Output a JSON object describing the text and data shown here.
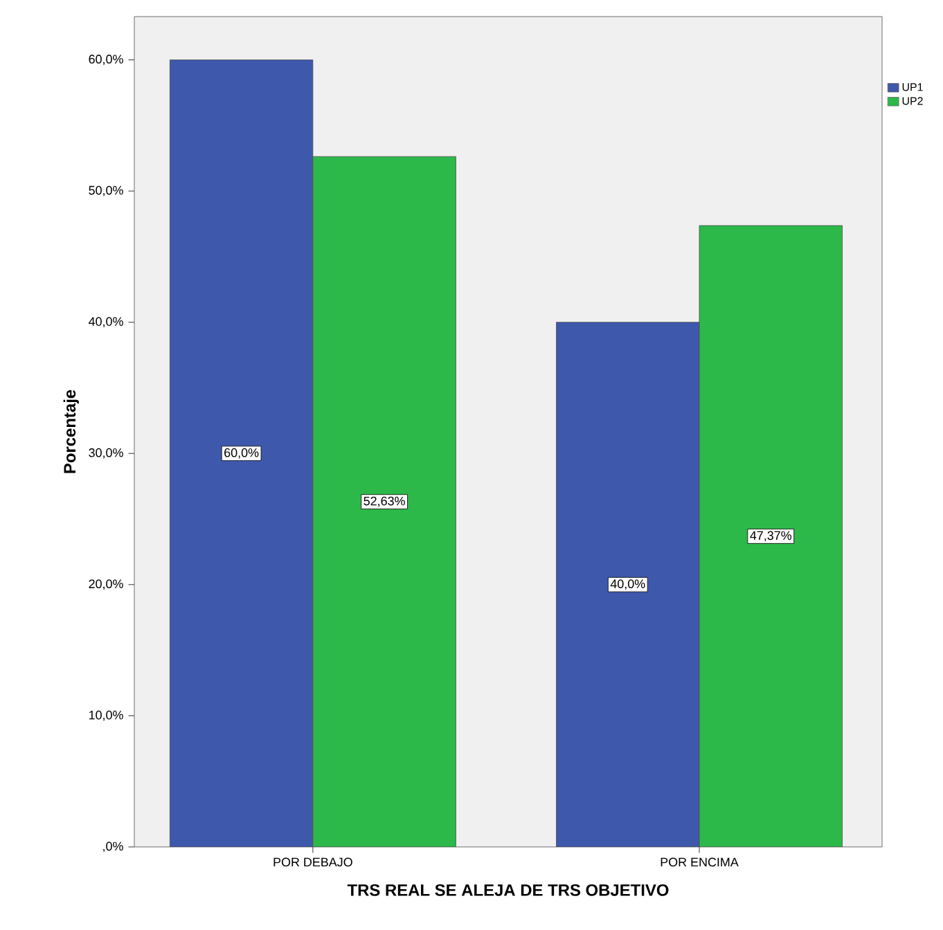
{
  "chart_data": {
    "type": "bar",
    "xlabel": "TRS REAL SE ALEJA DE TRS OBJETIVO",
    "ylabel": "Porcentaje",
    "categories": [
      "POR DEBAJO",
      "POR ENCIMA"
    ],
    "series": [
      {
        "name": "UP1",
        "color": "#3e58ac",
        "values": [
          60.0,
          40.0
        ],
        "value_labels": [
          "60,0%",
          "40,0%"
        ]
      },
      {
        "name": "UP2",
        "color": "#2db84a",
        "values": [
          52.63,
          47.37
        ],
        "value_labels": [
          "52,63%",
          "47,37%"
        ]
      }
    ],
    "ylim": [
      0,
      63.3
    ],
    "yticks": [
      {
        "value": 0,
        "label": ",0%"
      },
      {
        "value": 10,
        "label": "10,0%"
      },
      {
        "value": 20,
        "label": "20,0%"
      },
      {
        "value": 30,
        "label": "30,0%"
      },
      {
        "value": 40,
        "label": "40,0%"
      },
      {
        "value": 50,
        "label": "50,0%"
      },
      {
        "value": 60,
        "label": "60,0%"
      }
    ],
    "grid": false,
    "legend": "top right"
  }
}
